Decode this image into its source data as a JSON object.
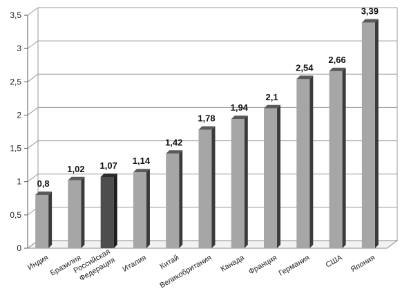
{
  "chart_data": {
    "type": "bar",
    "categories": [
      "Индия",
      "Бразилия",
      "Российская Федерация",
      "Италия",
      "Китай",
      "Великобритания",
      "Канада",
      "Франция",
      "Германия",
      "США",
      "Япония"
    ],
    "category_lines": [
      [
        "Индия"
      ],
      [
        "Бразилия"
      ],
      [
        "Российская",
        "Федерация"
      ],
      [
        "Италия"
      ],
      [
        "Китай"
      ],
      [
        "Великобритания"
      ],
      [
        "Канада"
      ],
      [
        "Франция"
      ],
      [
        "Германия"
      ],
      [
        "США"
      ],
      [
        "Япония"
      ]
    ],
    "values": [
      0.8,
      1.02,
      1.07,
      1.14,
      1.42,
      1.78,
      1.94,
      2.1,
      2.54,
      2.66,
      3.39
    ],
    "value_labels": [
      "0,8",
      "1,02",
      "1,07",
      "1,14",
      "1,42",
      "1,78",
      "1,94",
      "2,1",
      "2,54",
      "2,66",
      "3,39"
    ],
    "y_ticks": [
      0,
      0.5,
      1,
      1.5,
      2,
      2.5,
      3,
      3.5
    ],
    "y_tick_labels": [
      "0",
      "0,5",
      "1",
      "1,5",
      "2",
      "2,5",
      "3",
      "3,5"
    ],
    "ylim": [
      0,
      3.5
    ],
    "title": "",
    "xlabel": "",
    "ylabel": "",
    "grid": true,
    "legend": "none",
    "bar_color": "#a6a6a6",
    "highlight_color": "#4d4d4d",
    "highlight_index": 2,
    "gridline_color": "#9a9a9a"
  }
}
